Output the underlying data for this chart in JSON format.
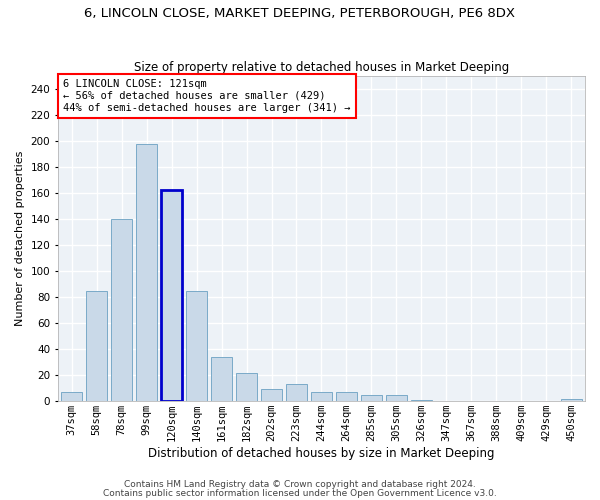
{
  "title1": "6, LINCOLN CLOSE, MARKET DEEPING, PETERBOROUGH, PE6 8DX",
  "title2": "Size of property relative to detached houses in Market Deeping",
  "xlabel": "Distribution of detached houses by size in Market Deeping",
  "ylabel": "Number of detached properties",
  "categories": [
    "37sqm",
    "58sqm",
    "78sqm",
    "99sqm",
    "120sqm",
    "140sqm",
    "161sqm",
    "182sqm",
    "202sqm",
    "223sqm",
    "244sqm",
    "264sqm",
    "285sqm",
    "305sqm",
    "326sqm",
    "347sqm",
    "367sqm",
    "388sqm",
    "409sqm",
    "429sqm",
    "450sqm"
  ],
  "values": [
    7,
    85,
    140,
    198,
    162,
    85,
    34,
    22,
    9,
    13,
    7,
    7,
    5,
    5,
    1,
    0,
    0,
    0,
    0,
    0,
    2
  ],
  "bar_color": "#c9d9e8",
  "bar_edge_color": "#7aaac8",
  "highlight_bar_index": 4,
  "highlight_bar_edge_color": "#0000cc",
  "annotation_text": "6 LINCOLN CLOSE: 121sqm\n← 56% of detached houses are smaller (429)\n44% of semi-detached houses are larger (341) →",
  "annotation_box_color": "white",
  "annotation_box_edge_color": "red",
  "ylim": [
    0,
    250
  ],
  "yticks": [
    0,
    20,
    40,
    60,
    80,
    100,
    120,
    140,
    160,
    180,
    200,
    220,
    240
  ],
  "footer1": "Contains HM Land Registry data © Crown copyright and database right 2024.",
  "footer2": "Contains public sector information licensed under the Open Government Licence v3.0.",
  "bg_color": "#edf2f7",
  "grid_color": "white",
  "title1_fontsize": 9.5,
  "title2_fontsize": 8.5,
  "xlabel_fontsize": 8.5,
  "ylabel_fontsize": 8,
  "tick_fontsize": 7.5,
  "annot_fontsize": 7.5,
  "footer_fontsize": 6.5
}
